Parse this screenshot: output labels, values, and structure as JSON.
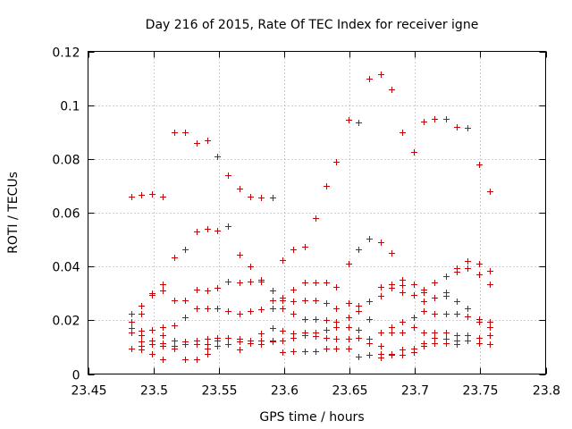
{
  "chart_data": {
    "type": "scatter",
    "title": "Day 216 of 2015, Rate Of TEC Index for receiver igne",
    "xlabel": "GPS time / hours",
    "ylabel": "ROTI / TECUs",
    "xlim": [
      23.45,
      23.8
    ],
    "ylim": [
      0,
      0.12
    ],
    "xticks": [
      23.45,
      23.5,
      23.55,
      23.6,
      23.65,
      23.7,
      23.75,
      23.8
    ],
    "xtick_labels": [
      "23.45",
      "23.5",
      "23.55",
      "23.6",
      "23.65",
      "23.7",
      "23.75",
      "23.8"
    ],
    "yticks": [
      0,
      0.02,
      0.04,
      0.06,
      0.08,
      0.1,
      0.12
    ],
    "ytick_labels": [
      "0",
      "0.02",
      "0.04",
      "0.06",
      "0.08",
      "0.1",
      "0.12"
    ],
    "grid": true,
    "marker": "+",
    "color": "#cc0000",
    "series": [
      {
        "name": "ROTI",
        "points": [
          [
            23.483,
            0.066
          ],
          [
            23.483,
            0.0225
          ],
          [
            23.483,
            0.0195
          ],
          [
            23.483,
            0.017
          ],
          [
            23.483,
            0.0155
          ],
          [
            23.483,
            0.0095
          ],
          [
            23.491,
            0.0665
          ],
          [
            23.491,
            0.0255
          ],
          [
            23.491,
            0.0225
          ],
          [
            23.491,
            0.016
          ],
          [
            23.491,
            0.0145
          ],
          [
            23.491,
            0.012
          ],
          [
            23.491,
            0.0105
          ],
          [
            23.491,
            0.009
          ],
          [
            23.499,
            0.067
          ],
          [
            23.499,
            0.03
          ],
          [
            23.499,
            0.0295
          ],
          [
            23.499,
            0.0165
          ],
          [
            23.499,
            0.0125
          ],
          [
            23.499,
            0.011
          ],
          [
            23.499,
            0.0075
          ],
          [
            23.507,
            0.066
          ],
          [
            23.507,
            0.0335
          ],
          [
            23.507,
            0.031
          ],
          [
            23.507,
            0.0175
          ],
          [
            23.507,
            0.0145
          ],
          [
            23.507,
            0.0115
          ],
          [
            23.507,
            0.0105
          ],
          [
            23.507,
            0.0055
          ],
          [
            23.516,
            0.09
          ],
          [
            23.516,
            0.0435
          ],
          [
            23.516,
            0.0275
          ],
          [
            23.516,
            0.018
          ],
          [
            23.516,
            0.0125
          ],
          [
            23.516,
            0.0105
          ],
          [
            23.516,
            0.0095
          ],
          [
            23.524,
            0.09
          ],
          [
            23.524,
            0.0465
          ],
          [
            23.524,
            0.0275
          ],
          [
            23.524,
            0.021
          ],
          [
            23.524,
            0.012
          ],
          [
            23.524,
            0.011
          ],
          [
            23.524,
            0.0055
          ],
          [
            23.533,
            0.086
          ],
          [
            23.533,
            0.053
          ],
          [
            23.533,
            0.0315
          ],
          [
            23.533,
            0.0245
          ],
          [
            23.533,
            0.0125
          ],
          [
            23.533,
            0.011
          ],
          [
            23.533,
            0.0055
          ],
          [
            23.541,
            0.087
          ],
          [
            23.541,
            0.054
          ],
          [
            23.541,
            0.031
          ],
          [
            23.541,
            0.0245
          ],
          [
            23.541,
            0.013
          ],
          [
            23.541,
            0.011
          ],
          [
            23.541,
            0.0095
          ],
          [
            23.541,
            0.0075
          ],
          [
            23.549,
            0.081
          ],
          [
            23.549,
            0.0535
          ],
          [
            23.549,
            0.032
          ],
          [
            23.549,
            0.0245
          ],
          [
            23.549,
            0.0135
          ],
          [
            23.549,
            0.0125
          ],
          [
            23.549,
            0.0105
          ],
          [
            23.557,
            0.074
          ],
          [
            23.557,
            0.055
          ],
          [
            23.557,
            0.0345
          ],
          [
            23.557,
            0.0235
          ],
          [
            23.557,
            0.0135
          ],
          [
            23.557,
            0.011
          ],
          [
            23.566,
            0.069
          ],
          [
            23.566,
            0.0445
          ],
          [
            23.566,
            0.034
          ],
          [
            23.566,
            0.0225
          ],
          [
            23.566,
            0.013
          ],
          [
            23.566,
            0.012
          ],
          [
            23.566,
            0.009
          ],
          [
            23.574,
            0.066
          ],
          [
            23.574,
            0.04
          ],
          [
            23.574,
            0.0345
          ],
          [
            23.574,
            0.0235
          ],
          [
            23.574,
            0.0125
          ],
          [
            23.574,
            0.0115
          ],
          [
            23.582,
            0.0655
          ],
          [
            23.582,
            0.035
          ],
          [
            23.582,
            0.0345
          ],
          [
            23.582,
            0.024
          ],
          [
            23.582,
            0.015
          ],
          [
            23.582,
            0.0125
          ],
          [
            23.582,
            0.011
          ],
          [
            23.591,
            0.0655
          ],
          [
            23.591,
            0.031
          ],
          [
            23.591,
            0.0275
          ],
          [
            23.591,
            0.0245
          ],
          [
            23.591,
            0.017
          ],
          [
            23.591,
            0.0125
          ],
          [
            23.591,
            0.012
          ],
          [
            23.599,
            0.0425
          ],
          [
            23.599,
            0.0285
          ],
          [
            23.599,
            0.0275
          ],
          [
            23.599,
            0.0245
          ],
          [
            23.599,
            0.016
          ],
          [
            23.599,
            0.0125
          ],
          [
            23.599,
            0.008
          ],
          [
            23.607,
            0.0465
          ],
          [
            23.607,
            0.0315
          ],
          [
            23.607,
            0.027
          ],
          [
            23.607,
            0.0225
          ],
          [
            23.607,
            0.015
          ],
          [
            23.607,
            0.0135
          ],
          [
            23.607,
            0.0085
          ],
          [
            23.616,
            0.0475
          ],
          [
            23.616,
            0.034
          ],
          [
            23.616,
            0.0275
          ],
          [
            23.616,
            0.0205
          ],
          [
            23.616,
            0.0155
          ],
          [
            23.616,
            0.0145
          ],
          [
            23.616,
            0.0085
          ],
          [
            23.624,
            0.058
          ],
          [
            23.624,
            0.034
          ],
          [
            23.624,
            0.0275
          ],
          [
            23.624,
            0.0205
          ],
          [
            23.624,
            0.0155
          ],
          [
            23.624,
            0.014
          ],
          [
            23.624,
            0.0085
          ],
          [
            23.632,
            0.07
          ],
          [
            23.632,
            0.034
          ],
          [
            23.632,
            0.0265
          ],
          [
            23.632,
            0.02
          ],
          [
            23.632,
            0.0165
          ],
          [
            23.632,
            0.0135
          ],
          [
            23.632,
            0.0095
          ],
          [
            23.64,
            0.079
          ],
          [
            23.64,
            0.0325
          ],
          [
            23.64,
            0.0245
          ],
          [
            23.64,
            0.0195
          ],
          [
            23.64,
            0.0175
          ],
          [
            23.64,
            0.013
          ],
          [
            23.64,
            0.0095
          ],
          [
            23.649,
            0.0945
          ],
          [
            23.649,
            0.041
          ],
          [
            23.649,
            0.0265
          ],
          [
            23.649,
            0.021
          ],
          [
            23.649,
            0.0175
          ],
          [
            23.649,
            0.013
          ],
          [
            23.649,
            0.0095
          ],
          [
            23.657,
            0.0935
          ],
          [
            23.657,
            0.0465
          ],
          [
            23.657,
            0.0255
          ],
          [
            23.657,
            0.0235
          ],
          [
            23.657,
            0.0165
          ],
          [
            23.657,
            0.0135
          ],
          [
            23.657,
            0.0065
          ],
          [
            23.665,
            0.11
          ],
          [
            23.665,
            0.0505
          ],
          [
            23.665,
            0.027
          ],
          [
            23.665,
            0.0205
          ],
          [
            23.665,
            0.013
          ],
          [
            23.665,
            0.0115
          ],
          [
            23.665,
            0.007
          ],
          [
            23.674,
            0.1115
          ],
          [
            23.674,
            0.049
          ],
          [
            23.674,
            0.0325
          ],
          [
            23.674,
            0.029
          ],
          [
            23.674,
            0.0155
          ],
          [
            23.674,
            0.0105
          ],
          [
            23.674,
            0.0075
          ],
          [
            23.674,
            0.006
          ],
          [
            23.682,
            0.106
          ],
          [
            23.682,
            0.045
          ],
          [
            23.682,
            0.0335
          ],
          [
            23.682,
            0.032
          ],
          [
            23.682,
            0.0175
          ],
          [
            23.682,
            0.0155
          ],
          [
            23.682,
            0.0075
          ],
          [
            23.682,
            0.007
          ],
          [
            23.69,
            0.09
          ],
          [
            23.69,
            0.035
          ],
          [
            23.69,
            0.033
          ],
          [
            23.69,
            0.0305
          ],
          [
            23.69,
            0.0195
          ],
          [
            23.69,
            0.0155
          ],
          [
            23.69,
            0.009
          ],
          [
            23.69,
            0.007
          ],
          [
            23.699,
            0.0825
          ],
          [
            23.699,
            0.0335
          ],
          [
            23.699,
            0.0295
          ],
          [
            23.699,
            0.021
          ],
          [
            23.699,
            0.0175
          ],
          [
            23.699,
            0.0095
          ],
          [
            23.699,
            0.008
          ],
          [
            23.707,
            0.094
          ],
          [
            23.707,
            0.0315
          ],
          [
            23.707,
            0.0305
          ],
          [
            23.707,
            0.027
          ],
          [
            23.707,
            0.0235
          ],
          [
            23.707,
            0.0155
          ],
          [
            23.707,
            0.0115
          ],
          [
            23.707,
            0.0105
          ],
          [
            23.715,
            0.095
          ],
          [
            23.715,
            0.034
          ],
          [
            23.715,
            0.0285
          ],
          [
            23.715,
            0.0225
          ],
          [
            23.715,
            0.0155
          ],
          [
            23.715,
            0.0135
          ],
          [
            23.715,
            0.0115
          ],
          [
            23.724,
            0.095
          ],
          [
            23.724,
            0.0365
          ],
          [
            23.724,
            0.0305
          ],
          [
            23.724,
            0.029
          ],
          [
            23.724,
            0.0225
          ],
          [
            23.724,
            0.0155
          ],
          [
            23.724,
            0.013
          ],
          [
            23.724,
            0.0115
          ],
          [
            23.732,
            0.092
          ],
          [
            23.732,
            0.0395
          ],
          [
            23.732,
            0.038
          ],
          [
            23.732,
            0.027
          ],
          [
            23.732,
            0.0225
          ],
          [
            23.732,
            0.0145
          ],
          [
            23.732,
            0.0125
          ],
          [
            23.732,
            0.011
          ],
          [
            23.74,
            0.0915
          ],
          [
            23.74,
            0.042
          ],
          [
            23.74,
            0.0395
          ],
          [
            23.74,
            0.0245
          ],
          [
            23.74,
            0.0215
          ],
          [
            23.74,
            0.0145
          ],
          [
            23.74,
            0.0125
          ],
          [
            23.749,
            0.078
          ],
          [
            23.749,
            0.041
          ],
          [
            23.749,
            0.037
          ],
          [
            23.749,
            0.0205
          ],
          [
            23.749,
            0.0195
          ],
          [
            23.749,
            0.0135
          ],
          [
            23.749,
            0.0115
          ],
          [
            23.757,
            0.068
          ],
          [
            23.757,
            0.0385
          ],
          [
            23.757,
            0.0335
          ],
          [
            23.757,
            0.0195
          ],
          [
            23.757,
            0.0175
          ],
          [
            23.757,
            0.0145
          ],
          [
            23.757,
            0.011
          ]
        ]
      }
    ]
  }
}
